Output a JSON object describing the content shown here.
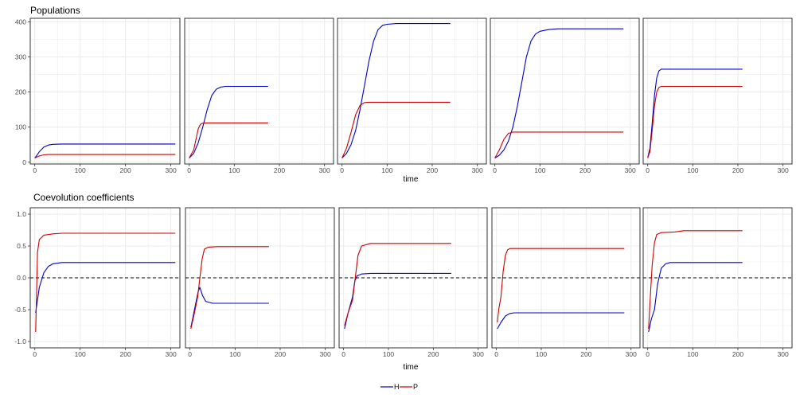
{
  "colors": {
    "H": "#0000cc",
    "P": "#cc0000",
    "grid": "#ebebeb",
    "frame": "#333333",
    "ref": "#000000"
  },
  "legend": {
    "position": "bottom",
    "entries": [
      "H",
      "P"
    ]
  },
  "chart_data": [
    {
      "type": "line",
      "title": "Populations",
      "xlabel": "time",
      "ylabel": "",
      "xlim": [
        -10,
        320
      ],
      "ylim": [
        -5,
        410
      ],
      "xticks": [
        0,
        100,
        200,
        300
      ],
      "yticks": [
        0,
        100,
        200,
        300,
        400
      ],
      "grid": true,
      "panels": [
        {
          "series": [
            {
              "name": "H",
              "points": [
                [
                  0,
                  12
                ],
                [
                  5,
                  20
                ],
                [
                  10,
                  30
                ],
                [
                  20,
                  43
                ],
                [
                  30,
                  49
                ],
                [
                  40,
                  51
                ],
                [
                  60,
                  52
                ],
                [
                  310,
                  52
                ]
              ]
            },
            {
              "name": "P",
              "points": [
                [
                  0,
                  12
                ],
                [
                  5,
                  15
                ],
                [
                  10,
                  18
                ],
                [
                  20,
                  21
                ],
                [
                  30,
                  22
                ],
                [
                  40,
                  22
                ],
                [
                  310,
                  22
                ]
              ]
            }
          ]
        },
        {
          "series": [
            {
              "name": "H",
              "points": [
                [
                  0,
                  12
                ],
                [
                  10,
                  25
                ],
                [
                  20,
                  55
                ],
                [
                  30,
                  100
                ],
                [
                  40,
                  150
                ],
                [
                  50,
                  190
                ],
                [
                  60,
                  208
                ],
                [
                  70,
                  214
                ],
                [
                  80,
                  216
                ],
                [
                  175,
                  216
                ]
              ]
            },
            {
              "name": "P",
              "points": [
                [
                  0,
                  12
                ],
                [
                  10,
                  35
                ],
                [
                  15,
                  65
                ],
                [
                  20,
                  95
                ],
                [
                  25,
                  108
                ],
                [
                  30,
                  111
                ],
                [
                  40,
                  112
                ],
                [
                  175,
                  112
                ]
              ]
            }
          ]
        },
        {
          "series": [
            {
              "name": "H",
              "points": [
                [
                  0,
                  12
                ],
                [
                  10,
                  25
                ],
                [
                  20,
                  50
                ],
                [
                  30,
                  90
                ],
                [
                  40,
                  150
                ],
                [
                  50,
                  220
                ],
                [
                  60,
                  290
                ],
                [
                  70,
                  345
                ],
                [
                  80,
                  378
                ],
                [
                  90,
                  390
                ],
                [
                  100,
                  393
                ],
                [
                  120,
                  395
                ],
                [
                  240,
                  395
                ]
              ]
            },
            {
              "name": "P",
              "points": [
                [
                  0,
                  12
                ],
                [
                  10,
                  40
                ],
                [
                  20,
                  85
                ],
                [
                  30,
                  135
                ],
                [
                  40,
                  162
                ],
                [
                  50,
                  170
                ],
                [
                  60,
                  171
                ],
                [
                  240,
                  171
                ]
              ]
            }
          ]
        },
        {
          "series": [
            {
              "name": "H",
              "points": [
                [
                  0,
                  12
                ],
                [
                  10,
                  20
                ],
                [
                  20,
                  35
                ],
                [
                  30,
                  60
                ],
                [
                  40,
                  100
                ],
                [
                  50,
                  160
                ],
                [
                  60,
                  230
                ],
                [
                  70,
                  300
                ],
                [
                  80,
                  345
                ],
                [
                  90,
                  365
                ],
                [
                  100,
                  373
                ],
                [
                  120,
                  378
                ],
                [
                  140,
                  380
                ],
                [
                  285,
                  380
                ]
              ]
            },
            {
              "name": "P",
              "points": [
                [
                  0,
                  12
                ],
                [
                  10,
                  35
                ],
                [
                  20,
                  65
                ],
                [
                  30,
                  82
                ],
                [
                  40,
                  86
                ],
                [
                  60,
                  86
                ],
                [
                  285,
                  86
                ]
              ]
            }
          ]
        },
        {
          "series": [
            {
              "name": "H",
              "points": [
                [
                  0,
                  12
                ],
                [
                  5,
                  40
                ],
                [
                  10,
                  110
                ],
                [
                  15,
                  190
                ],
                [
                  20,
                  240
                ],
                [
                  25,
                  260
                ],
                [
                  30,
                  265
                ],
                [
                  40,
                  265
                ],
                [
                  210,
                  265
                ]
              ]
            },
            {
              "name": "P",
              "points": [
                [
                  0,
                  12
                ],
                [
                  5,
                  30
                ],
                [
                  10,
                  90
                ],
                [
                  15,
                  160
                ],
                [
                  20,
                  200
                ],
                [
                  25,
                  213
                ],
                [
                  30,
                  216
                ],
                [
                  40,
                  216
                ],
                [
                  210,
                  216
                ]
              ]
            }
          ]
        }
      ]
    },
    {
      "type": "line",
      "title": "Coevolution coefficients",
      "xlabel": "time",
      "ylabel": "",
      "xlim": [
        -10,
        320
      ],
      "ylim": [
        -1.1,
        1.1
      ],
      "xticks": [
        0,
        100,
        200,
        300
      ],
      "yticks": [
        -1.0,
        -0.5,
        0.0,
        0.5,
        1.0
      ],
      "yticklabels": [
        "-1.0",
        "-0.5",
        "0.0",
        "0.5",
        "1.0"
      ],
      "reference_line": {
        "y": 0,
        "style": "dashed"
      },
      "grid": true,
      "panels": [
        {
          "series": [
            {
              "name": "H",
              "points": [
                [
                  2,
                  -0.55
                ],
                [
                  5,
                  -0.4
                ],
                [
                  10,
                  -0.15
                ],
                [
                  20,
                  0.08
                ],
                [
                  30,
                  0.18
                ],
                [
                  40,
                  0.22
                ],
                [
                  60,
                  0.24
                ],
                [
                  310,
                  0.24
                ]
              ]
            },
            {
              "name": "P",
              "points": [
                [
                  2,
                  -0.85
                ],
                [
                  4,
                  -0.2
                ],
                [
                  6,
                  0.4
                ],
                [
                  10,
                  0.6
                ],
                [
                  20,
                  0.67
                ],
                [
                  40,
                  0.69
                ],
                [
                  60,
                  0.7
                ],
                [
                  310,
                  0.7
                ]
              ]
            }
          ]
        },
        {
          "series": [
            {
              "name": "H",
              "points": [
                [
                  2,
                  -0.78
                ],
                [
                  10,
                  -0.5
                ],
                [
                  18,
                  -0.22
                ],
                [
                  22,
                  -0.15
                ],
                [
                  28,
                  -0.28
                ],
                [
                  35,
                  -0.37
                ],
                [
                  50,
                  -0.4
                ],
                [
                  175,
                  -0.4
                ]
              ]
            },
            {
              "name": "P",
              "points": [
                [
                  2,
                  -0.8
                ],
                [
                  10,
                  -0.55
                ],
                [
                  17,
                  -0.3
                ],
                [
                  22,
                  0.0
                ],
                [
                  27,
                  0.3
                ],
                [
                  32,
                  0.45
                ],
                [
                  40,
                  0.48
                ],
                [
                  60,
                  0.49
                ],
                [
                  175,
                  0.49
                ]
              ]
            }
          ]
        },
        {
          "series": [
            {
              "name": "H",
              "points": [
                [
                  2,
                  -0.8
                ],
                [
                  10,
                  -0.55
                ],
                [
                  20,
                  -0.3
                ],
                [
                  25,
                  -0.05
                ],
                [
                  30,
                  0.03
                ],
                [
                  40,
                  0.06
                ],
                [
                  60,
                  0.07
                ],
                [
                  240,
                  0.07
                ]
              ]
            },
            {
              "name": "P",
              "points": [
                [
                  2,
                  -0.75
                ],
                [
                  10,
                  -0.55
                ],
                [
                  20,
                  -0.35
                ],
                [
                  26,
                  0.0
                ],
                [
                  32,
                  0.35
                ],
                [
                  40,
                  0.5
                ],
                [
                  60,
                  0.54
                ],
                [
                  240,
                  0.54
                ]
              ]
            }
          ]
        },
        {
          "series": [
            {
              "name": "H",
              "points": [
                [
                  2,
                  -0.8
                ],
                [
                  10,
                  -0.7
                ],
                [
                  20,
                  -0.6
                ],
                [
                  30,
                  -0.56
                ],
                [
                  40,
                  -0.55
                ],
                [
                  285,
                  -0.55
                ]
              ]
            },
            {
              "name": "P",
              "points": [
                [
                  2,
                  -0.7
                ],
                [
                  5,
                  -0.5
                ],
                [
                  10,
                  -0.3
                ],
                [
                  15,
                  0.1
                ],
                [
                  20,
                  0.35
                ],
                [
                  25,
                  0.44
                ],
                [
                  30,
                  0.46
                ],
                [
                  285,
                  0.46
                ]
              ]
            }
          ]
        },
        {
          "series": [
            {
              "name": "H",
              "points": [
                [
                  2,
                  -0.85
                ],
                [
                  8,
                  -0.65
                ],
                [
                  15,
                  -0.5
                ],
                [
                  22,
                  -0.1
                ],
                [
                  30,
                  0.15
                ],
                [
                  40,
                  0.22
                ],
                [
                  50,
                  0.24
                ],
                [
                  210,
                  0.24
                ]
              ]
            },
            {
              "name": "P",
              "points": [
                [
                  2,
                  -0.8
                ],
                [
                  5,
                  -0.4
                ],
                [
                  10,
                  0.2
                ],
                [
                  15,
                  0.55
                ],
                [
                  20,
                  0.68
                ],
                [
                  30,
                  0.71
                ],
                [
                  60,
                  0.72
                ],
                [
                  80,
                  0.74
                ],
                [
                  210,
                  0.74
                ]
              ]
            }
          ]
        }
      ]
    }
  ]
}
